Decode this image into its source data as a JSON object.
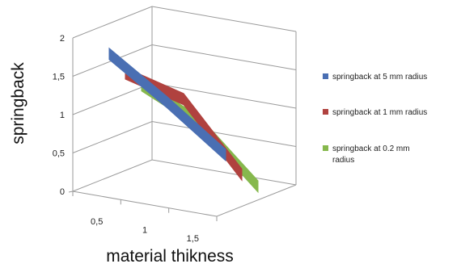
{
  "chart_data": {
    "type": "line",
    "style": "3d-ribbon",
    "xlabel": "material thikness",
    "ylabel": "springback",
    "categories": [
      "0,5",
      "1",
      "1,5"
    ],
    "yticks": [
      "0",
      "0,5",
      "1",
      "1,5",
      "2"
    ],
    "ylim": [
      0,
      2
    ],
    "grid": true,
    "legend_position": "right",
    "series": [
      {
        "name": "springback at 5 mm radius",
        "color": "#4a6fb3",
        "values": [
          1.95,
          1.4,
          0.8
        ]
      },
      {
        "name": "springback at 1 mm radius",
        "color": "#b0423f",
        "values": [
          1.8,
          1.55,
          0.65
        ]
      },
      {
        "name": "springback at 0.2 mm radius",
        "color": "#86b84d",
        "values": [
          1.75,
          1.35,
          0.6
        ]
      }
    ]
  }
}
